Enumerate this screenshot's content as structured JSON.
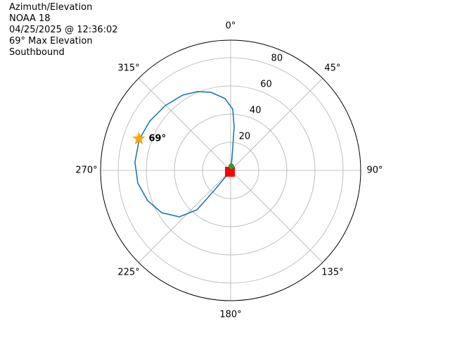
{
  "chart_data": {
    "type": "polar",
    "annotations": [
      "Azimuth/Elevation",
      "NOAA 18",
      "04/25/2025 @ 12:36:02",
      "69° Max Elevation",
      "Southbound"
    ],
    "series": [
      {
        "color": "#1f77b4",
        "theta": [
          9.5,
          5.4,
          4.6,
          2.0,
          355.5,
          345.8,
          337.2,
          327.6,
          314.7,
          301.3,
          288.7,
          275,
          262.2,
          250,
          238.5,
          227.9,
          220.6,
          219.4,
          218.7,
          206
        ],
        "r": [
          3.0,
          16.1,
          31.1,
          43.5,
          51.2,
          57.2,
          60.7,
          63.4,
          65.4,
          67.3,
          68.6,
          68.3,
          66.6,
          62.8,
          57.5,
          49.2,
          36.9,
          18.1,
          6.4,
          1.1
        ]
      }
    ],
    "start_color": "#2ca02c",
    "end_color": "#ff0000",
    "max_point": {
      "theta": 289,
      "r": 69,
      "label": "69°",
      "color": "#ffa500"
    },
    "rlim": [
      0,
      92.5
    ],
    "rticks": [
      20,
      40,
      60,
      80
    ],
    "thetaticks": [
      {
        "value": 0,
        "label": "0°"
      },
      {
        "value": 45,
        "label": "45°"
      },
      {
        "value": 90,
        "label": "90°"
      },
      {
        "value": 135,
        "label": "135°"
      },
      {
        "value": 180,
        "label": "180°"
      },
      {
        "value": 225,
        "label": "225°"
      },
      {
        "value": 270,
        "label": "270°"
      },
      {
        "value": 315,
        "label": "315°"
      }
    ],
    "grid": true
  }
}
